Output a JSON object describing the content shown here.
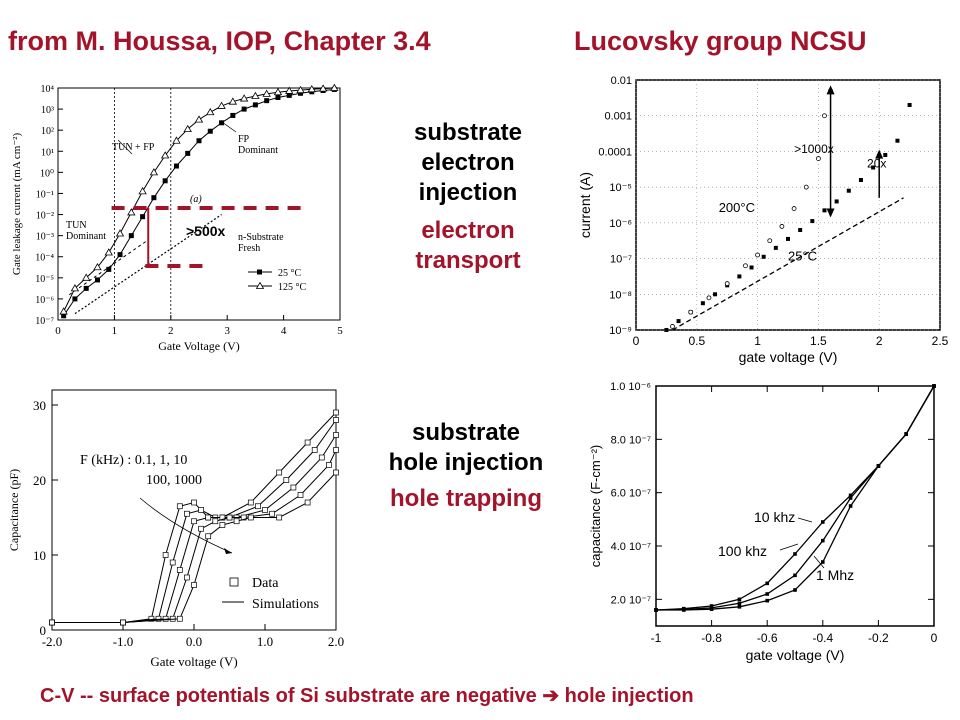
{
  "header": {
    "left": "from M. Houssa, IOP, Chapter 3.4",
    "right": "Lucovsky group NCSU"
  },
  "middle_top": {
    "line1": "substrate",
    "line2": "electron",
    "line3": "injection",
    "red1": "electron",
    "red2": "transport"
  },
  "middle_bottom": {
    "line1": "substrate",
    "line2": "hole injection",
    "red1": "hole trapping"
  },
  "footer": {
    "text_before": "C-V -- surface potentials of Si substrate are negative ",
    "arrow_glyph": "➔",
    "text_after": " hole injection"
  },
  "colors": {
    "accent_red": "#a3132a",
    "text": "#000000",
    "background": "#ffffff"
  },
  "chart_data": [
    {
      "id": "houssa-leakage",
      "type": "scatter",
      "xlabel": "Gate Voltage (V)",
      "ylabel": "Gate leakage current (mA cm⁻²)",
      "x_ticks": [
        "0",
        "1",
        "2",
        "3",
        "4",
        "5"
      ],
      "y_ticks": [
        "10⁻⁷",
        "10⁻⁶",
        "10⁻⁵",
        "10⁻⁴",
        "10⁻³",
        "10⁻²",
        "10⁻¹",
        "10⁰",
        "10¹",
        "10²",
        "10³",
        "10⁴"
      ],
      "xlim": [
        0,
        5
      ],
      "ylim_log10": [
        -7,
        4
      ],
      "annotations": {
        "tun_fp": "TUN + FP",
        "fp_dominant": "FP\nDominant",
        "tun_dominant": "TUN\nDominant",
        "panel": "(a)",
        "substrate": "n-Substrate\nFresh",
        "ratio": ">500x"
      },
      "legend": [
        "25 °C",
        "125 °C"
      ],
      "series": [
        {
          "name": "25 °C",
          "marker": "filled-square",
          "x": [
            0.1,
            0.3,
            0.5,
            0.7,
            0.9,
            1.1,
            1.3,
            1.5,
            1.7,
            1.9,
            2.1,
            2.3,
            2.5,
            2.7,
            2.9,
            3.1,
            3.3,
            3.5,
            3.7,
            3.9,
            4.1,
            4.3,
            4.5,
            4.7,
            4.9
          ],
          "log10_y": [
            -6.8,
            -6.0,
            -5.5,
            -5.1,
            -4.6,
            -3.9,
            -3.0,
            -2.1,
            -1.2,
            -0.4,
            0.3,
            0.9,
            1.5,
            1.95,
            2.35,
            2.7,
            3.0,
            3.2,
            3.4,
            3.55,
            3.65,
            3.75,
            3.82,
            3.88,
            3.93
          ]
        },
        {
          "name": "125 °C",
          "marker": "open-triangle",
          "x": [
            0.1,
            0.3,
            0.5,
            0.7,
            0.9,
            1.1,
            1.3,
            1.5,
            1.7,
            1.9,
            2.1,
            2.3,
            2.5,
            2.7,
            2.9,
            3.1,
            3.3,
            3.5,
            3.7,
            3.9,
            4.1,
            4.3,
            4.5,
            4.7,
            4.9
          ],
          "log10_y": [
            -6.6,
            -5.5,
            -5.0,
            -4.5,
            -3.8,
            -2.9,
            -1.9,
            -0.9,
            0.0,
            0.8,
            1.5,
            2.05,
            2.5,
            2.85,
            3.15,
            3.35,
            3.5,
            3.62,
            3.72,
            3.8,
            3.86,
            3.9,
            3.94,
            3.97,
            4.0
          ]
        }
      ]
    },
    {
      "id": "lucovsky-iv",
      "type": "scatter",
      "xlabel": "gate voltage (V)",
      "ylabel": "current (A)",
      "x_ticks": [
        "0",
        "0.5",
        "1",
        "1.5",
        "2",
        "2.5"
      ],
      "y_ticks": [
        "10⁻⁹",
        "10⁻⁸",
        "10⁻⁷",
        "10⁻⁶",
        "10⁻⁵",
        "0.0001",
        "0.001",
        "0.01"
      ],
      "xlim": [
        0,
        2.5
      ],
      "ylim_log10": [
        -9,
        -2
      ],
      "annotations": {
        "r1000": ">1000x",
        "r20": "20x",
        "t200": "200°C",
        "t25": "25°C"
      },
      "series": [
        {
          "name": "",
          "marker": "filled-square",
          "x": [
            0.25,
            0.35,
            0.45,
            0.55,
            0.65,
            0.75,
            0.85,
            0.95,
            1.05,
            1.15,
            1.25,
            1.35,
            1.45,
            1.55,
            1.65,
            1.75,
            1.85,
            1.95,
            2.05,
            2.15,
            2.25
          ],
          "log10_y": [
            -9.0,
            -8.75,
            -8.5,
            -8.25,
            -8.0,
            -7.75,
            -7.5,
            -7.25,
            -6.95,
            -6.7,
            -6.45,
            -6.2,
            -5.95,
            -5.65,
            -5.4,
            -5.1,
            -4.8,
            -4.45,
            -4.1,
            -3.7,
            -2.7
          ]
        },
        {
          "name": "",
          "marker": "open-circle",
          "x": [
            0.3,
            0.45,
            0.6,
            0.75,
            0.9,
            1.0,
            1.1,
            1.2,
            1.3,
            1.4,
            1.5,
            1.55,
            1.6
          ],
          "log10_y": [
            -8.9,
            -8.5,
            -8.1,
            -7.7,
            -7.2,
            -6.9,
            -6.5,
            -6.1,
            -5.6,
            -5.0,
            -4.2,
            -3.0,
            -2.3
          ]
        }
      ],
      "fit_line": {
        "x": [
          0.3,
          2.2
        ],
        "log10_y": [
          -9.0,
          -5.3
        ]
      }
    },
    {
      "id": "houssa-cv",
      "type": "line",
      "xlabel": "Gate voltage (V)",
      "ylabel": "Capacitance (pF)",
      "x_ticks": [
        "-2.0",
        "-1.0",
        "0.0",
        "1.0",
        "2.0"
      ],
      "y_ticks": [
        "0",
        "10",
        "20",
        "30"
      ],
      "xlim": [
        -2,
        2
      ],
      "ylim": [
        0,
        32
      ],
      "annotations": {
        "freq_line1": "F (kHz) : 0.1, 1, 10",
        "freq_line2": "100, 1000"
      },
      "legend": [
        "Data",
        "Simulations"
      ],
      "series": [
        {
          "name": "0.1 kHz",
          "x": [
            -2,
            -1,
            -0.6,
            -0.4,
            -0.2,
            0,
            0.2,
            0.4,
            0.8,
            1.2,
            1.6,
            2.0
          ],
          "values": [
            1,
            1,
            1.5,
            10,
            16.5,
            17,
            15,
            15,
            17,
            21,
            25,
            29
          ]
        },
        {
          "name": "1 kHz",
          "x": [
            -2,
            -1,
            -0.5,
            -0.3,
            -0.1,
            0.1,
            0.3,
            0.5,
            0.9,
            1.3,
            1.7,
            2.0
          ],
          "values": [
            1,
            1,
            1.5,
            9,
            15.5,
            16,
            15,
            15,
            16.5,
            20,
            24,
            28
          ]
        },
        {
          "name": "10 kHz",
          "x": [
            -2,
            -1,
            -0.4,
            -0.2,
            0,
            0.2,
            0.4,
            0.6,
            1.0,
            1.4,
            1.8,
            2.0
          ],
          "values": [
            1,
            1,
            1.5,
            8,
            14.5,
            15,
            15,
            15,
            16,
            19,
            23,
            26
          ]
        },
        {
          "name": "100 kHz",
          "x": [
            -2,
            -1,
            -0.3,
            -0.1,
            0.1,
            0.3,
            0.5,
            0.7,
            1.1,
            1.5,
            1.9,
            2.0
          ],
          "values": [
            1,
            1,
            1.5,
            7,
            13.5,
            14.5,
            15,
            15,
            15.5,
            18,
            22,
            24
          ]
        },
        {
          "name": "1000 kHz",
          "x": [
            -2,
            -1,
            -0.2,
            0,
            0.2,
            0.4,
            0.6,
            0.8,
            1.2,
            1.6,
            2.0
          ],
          "values": [
            1,
            1,
            1.5,
            6,
            12.5,
            14,
            14.5,
            15,
            15,
            17,
            21
          ]
        }
      ]
    },
    {
      "id": "lucovsky-cv",
      "type": "line",
      "xlabel": "gate voltage (V)",
      "ylabel": "capacitance (F-cm⁻²)",
      "x_ticks": [
        "-1",
        "-0.8",
        "-0.6",
        "-0.4",
        "-0.2",
        "0"
      ],
      "y_ticks": [
        "2.0 10⁻⁷",
        "4.0 10⁻⁷",
        "6.0 10⁻⁷",
        "8.0 10⁻⁷",
        "1.0 10⁻⁶"
      ],
      "xlim": [
        -1,
        0
      ],
      "ylim_e7": [
        1.0,
        10.0
      ],
      "annotations": {
        "f10k": "10 khz",
        "f100k": "100 khz",
        "f1M": "1 Mhz"
      },
      "series": [
        {
          "name": "",
          "x": [
            -1.0,
            -0.9,
            -0.8,
            -0.7,
            -0.6,
            -0.5,
            -0.4,
            -0.3,
            -0.2,
            -0.1,
            0.0
          ],
          "values_e7": [
            1.6,
            1.65,
            1.75,
            2.0,
            2.6,
            3.7,
            4.9,
            5.9,
            7.0,
            8.2,
            10.0
          ]
        },
        {
          "name": "",
          "x": [
            -1.0,
            -0.9,
            -0.8,
            -0.7,
            -0.6,
            -0.5,
            -0.4,
            -0.3,
            -0.2,
            -0.1,
            0.0
          ],
          "values_e7": [
            1.6,
            1.62,
            1.68,
            1.85,
            2.2,
            2.9,
            4.2,
            5.8,
            7.0,
            8.2,
            10.0
          ]
        },
        {
          "name": "",
          "x": [
            -1.0,
            -0.9,
            -0.8,
            -0.7,
            -0.6,
            -0.5,
            -0.4,
            -0.3,
            -0.2,
            -0.1,
            0.0
          ],
          "values_e7": [
            1.6,
            1.6,
            1.63,
            1.72,
            1.95,
            2.35,
            3.4,
            5.5,
            7.0,
            8.2,
            10.0
          ]
        }
      ]
    }
  ]
}
